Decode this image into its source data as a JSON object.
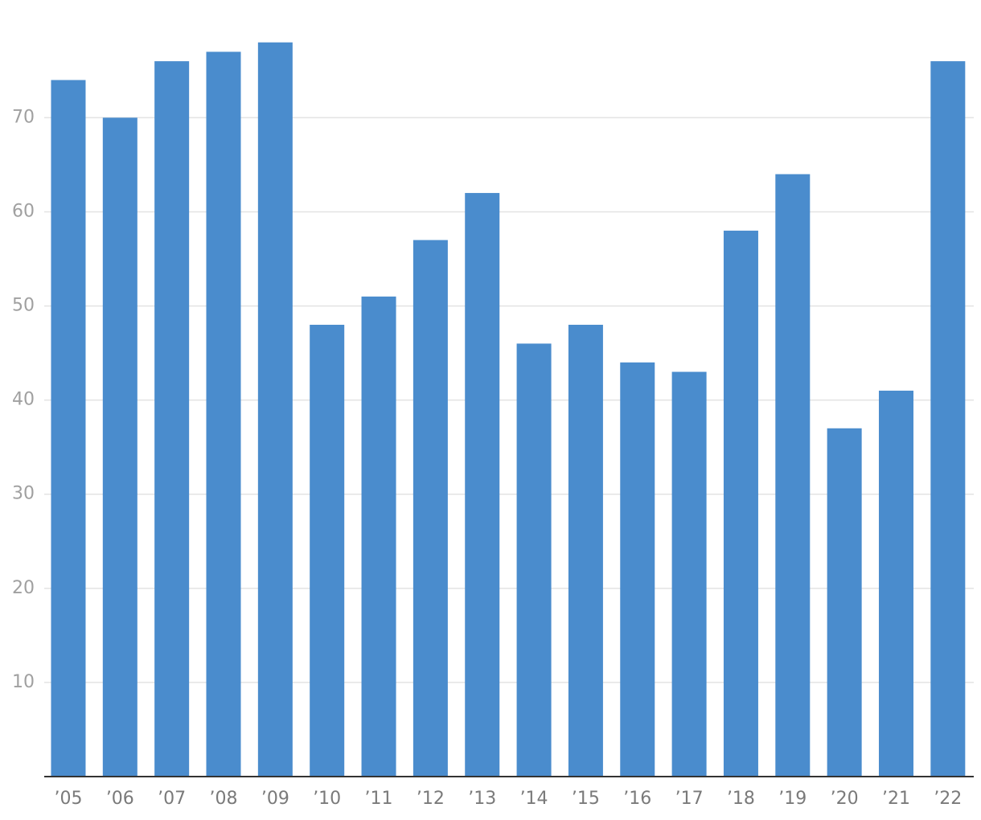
{
  "chart_data": {
    "type": "bar",
    "categories": [
      "’05",
      "’06",
      "’07",
      "’08",
      "’09",
      "’10",
      "’11",
      "’12",
      "’13",
      "’14",
      "’15",
      "’16",
      "’17",
      "’18",
      "’19",
      "’20",
      "’21",
      "’22"
    ],
    "values": [
      74,
      70,
      76,
      77,
      78,
      48,
      51,
      57,
      62,
      46,
      48,
      44,
      43,
      58,
      64,
      37,
      41,
      76
    ],
    "color": "#4a8ccd",
    "ylim": [
      0,
      80
    ],
    "yticks": [
      10,
      20,
      30,
      40,
      50,
      60,
      70
    ],
    "grid": true
  }
}
